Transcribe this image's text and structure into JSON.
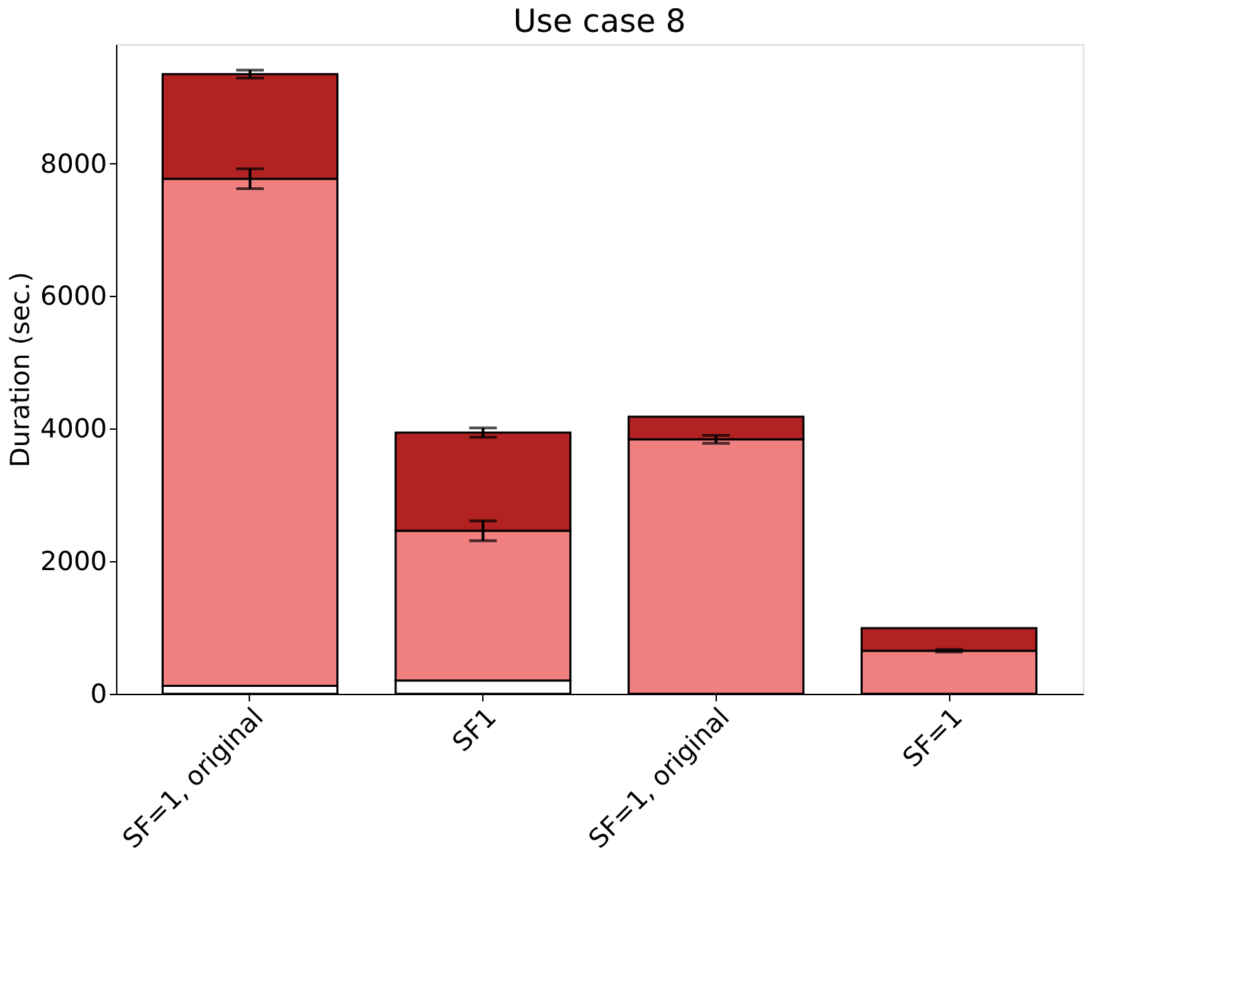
{
  "chart_data": {
    "type": "bar",
    "title": "Use case 8",
    "ylabel": "Duration (sec.)",
    "categories": [
      "SF=1, original",
      "SF1",
      "SF=1, original",
      "SF=1"
    ],
    "stacked": true,
    "series": [
      {
        "color": "#ffffff",
        "values": [
          120,
          200,
          0,
          0
        ],
        "errors": [
          null,
          null,
          null,
          null
        ]
      },
      {
        "color": "#f08080",
        "values": [
          7650,
          2260,
          3840,
          650
        ],
        "errors": [
          150,
          150,
          60,
          20
        ]
      },
      {
        "color": "#b22222",
        "values": [
          1580,
          1480,
          340,
          340
        ],
        "errors": [
          60,
          70,
          null,
          null
        ]
      }
    ],
    "ylim": [
      0,
      9800
    ],
    "yticks": [
      0,
      2000,
      4000,
      6000,
      8000
    ],
    "grid": false
  }
}
